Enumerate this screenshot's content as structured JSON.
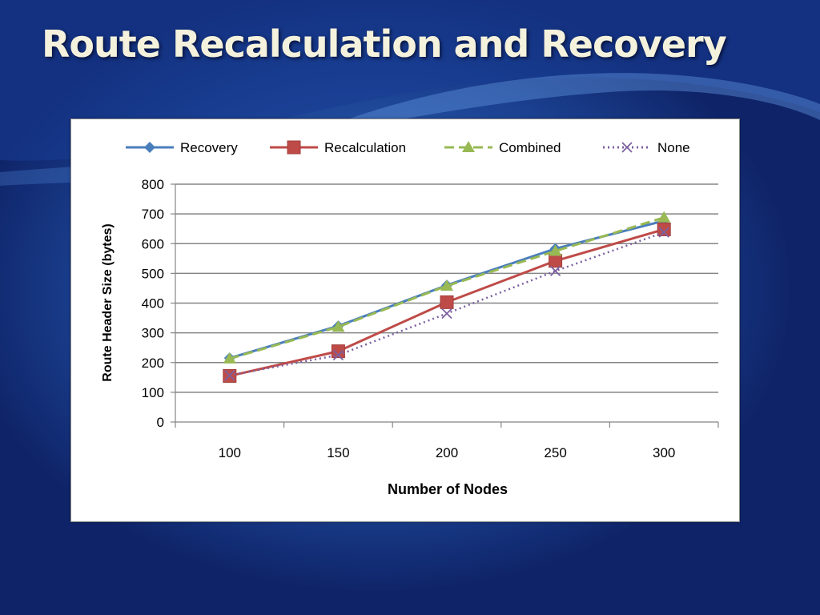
{
  "slide": {
    "title": "Route Recalculation and Recovery"
  },
  "colors": {
    "background_dark": "#0f2468",
    "background_light": "#3d74c4",
    "title": "#f4f1dc"
  },
  "chart_data": {
    "type": "line",
    "title": "",
    "xlabel": "Number of Nodes",
    "ylabel": "Route Header Size (bytes)",
    "categories": [
      "100",
      "150",
      "200",
      "250",
      "300"
    ],
    "ylim": [
      0,
      800
    ],
    "yticks": [
      0,
      100,
      200,
      300,
      400,
      500,
      600,
      700,
      800
    ],
    "grid": true,
    "legend_position": "top",
    "series": [
      {
        "name": "Recovery",
        "values": [
          215,
          323,
          460,
          583,
          677
        ],
        "color": "#4a7ebb",
        "marker": "diamond",
        "dash": "solid"
      },
      {
        "name": "Recalculation",
        "values": [
          155,
          238,
          403,
          542,
          648
        ],
        "color": "#be4b48",
        "marker": "square",
        "dash": "solid"
      },
      {
        "name": "Combined",
        "values": [
          213,
          320,
          458,
          575,
          688
        ],
        "color": "#98b954",
        "marker": "triangle",
        "dash": "dashed"
      },
      {
        "name": "None",
        "values": [
          157,
          225,
          365,
          508,
          638
        ],
        "color": "#7d60a0",
        "marker": "x",
        "dash": "dotted"
      }
    ]
  }
}
